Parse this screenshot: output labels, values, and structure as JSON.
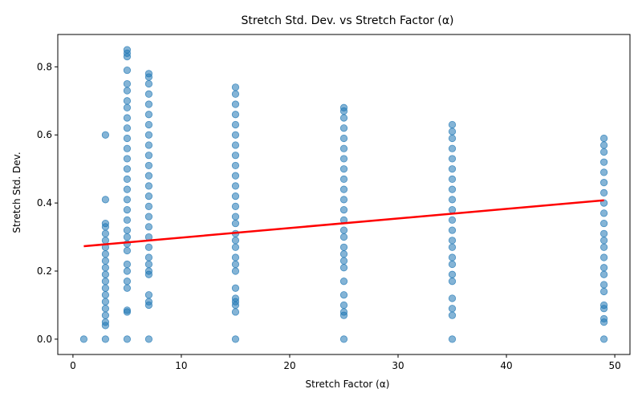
{
  "chart_data": {
    "type": "scatter",
    "title": "Stretch Std. Dev. vs Stretch Factor (α)",
    "xlabel": "Stretch Factor (α)",
    "ylabel": "Stretch Std. Dev.",
    "xlim": [
      -1.4,
      51.4
    ],
    "ylim": [
      -0.045,
      0.895
    ],
    "xticks": [
      0,
      10,
      20,
      30,
      40,
      50
    ],
    "yticks": [
      0.0,
      0.2,
      0.4,
      0.6,
      0.8
    ],
    "grid": false,
    "point_color": "#1f77b4",
    "fit_color": "#ff0000",
    "series": [
      {
        "points": [
          {
            "x": 1,
            "y": 0.0
          },
          {
            "x": 3,
            "y": 0.0
          },
          {
            "x": 3,
            "y": 0.04
          },
          {
            "x": 3,
            "y": 0.05
          },
          {
            "x": 3,
            "y": 0.07
          },
          {
            "x": 3,
            "y": 0.09
          },
          {
            "x": 3,
            "y": 0.11
          },
          {
            "x": 3,
            "y": 0.13
          },
          {
            "x": 3,
            "y": 0.15
          },
          {
            "x": 3,
            "y": 0.17
          },
          {
            "x": 3,
            "y": 0.19
          },
          {
            "x": 3,
            "y": 0.21
          },
          {
            "x": 3,
            "y": 0.23
          },
          {
            "x": 3,
            "y": 0.25
          },
          {
            "x": 3,
            "y": 0.27
          },
          {
            "x": 3,
            "y": 0.29
          },
          {
            "x": 3,
            "y": 0.31
          },
          {
            "x": 3,
            "y": 0.33
          },
          {
            "x": 3,
            "y": 0.34
          },
          {
            "x": 3,
            "y": 0.41
          },
          {
            "x": 3,
            "y": 0.6
          },
          {
            "x": 5,
            "y": 0.0
          },
          {
            "x": 5,
            "y": 0.08
          },
          {
            "x": 5,
            "y": 0.085
          },
          {
            "x": 5,
            "y": 0.15
          },
          {
            "x": 5,
            "y": 0.17
          },
          {
            "x": 5,
            "y": 0.2
          },
          {
            "x": 5,
            "y": 0.22
          },
          {
            "x": 5,
            "y": 0.26
          },
          {
            "x": 5,
            "y": 0.28
          },
          {
            "x": 5,
            "y": 0.3
          },
          {
            "x": 5,
            "y": 0.32
          },
          {
            "x": 5,
            "y": 0.35
          },
          {
            "x": 5,
            "y": 0.38
          },
          {
            "x": 5,
            "y": 0.41
          },
          {
            "x": 5,
            "y": 0.44
          },
          {
            "x": 5,
            "y": 0.47
          },
          {
            "x": 5,
            "y": 0.5
          },
          {
            "x": 5,
            "y": 0.53
          },
          {
            "x": 5,
            "y": 0.56
          },
          {
            "x": 5,
            "y": 0.59
          },
          {
            "x": 5,
            "y": 0.62
          },
          {
            "x": 5,
            "y": 0.65
          },
          {
            "x": 5,
            "y": 0.68
          },
          {
            "x": 5,
            "y": 0.7
          },
          {
            "x": 5,
            "y": 0.73
          },
          {
            "x": 5,
            "y": 0.75
          },
          {
            "x": 5,
            "y": 0.79
          },
          {
            "x": 5,
            "y": 0.83
          },
          {
            "x": 5,
            "y": 0.84
          },
          {
            "x": 5,
            "y": 0.85
          },
          {
            "x": 7,
            "y": 0.0
          },
          {
            "x": 7,
            "y": 0.1
          },
          {
            "x": 7,
            "y": 0.11
          },
          {
            "x": 7,
            "y": 0.13
          },
          {
            "x": 7,
            "y": 0.19
          },
          {
            "x": 7,
            "y": 0.2
          },
          {
            "x": 7,
            "y": 0.22
          },
          {
            "x": 7,
            "y": 0.24
          },
          {
            "x": 7,
            "y": 0.27
          },
          {
            "x": 7,
            "y": 0.3
          },
          {
            "x": 7,
            "y": 0.33
          },
          {
            "x": 7,
            "y": 0.36
          },
          {
            "x": 7,
            "y": 0.39
          },
          {
            "x": 7,
            "y": 0.42
          },
          {
            "x": 7,
            "y": 0.45
          },
          {
            "x": 7,
            "y": 0.48
          },
          {
            "x": 7,
            "y": 0.51
          },
          {
            "x": 7,
            "y": 0.54
          },
          {
            "x": 7,
            "y": 0.57
          },
          {
            "x": 7,
            "y": 0.6
          },
          {
            "x": 7,
            "y": 0.63
          },
          {
            "x": 7,
            "y": 0.66
          },
          {
            "x": 7,
            "y": 0.69
          },
          {
            "x": 7,
            "y": 0.72
          },
          {
            "x": 7,
            "y": 0.75
          },
          {
            "x": 7,
            "y": 0.77
          },
          {
            "x": 7,
            "y": 0.78
          },
          {
            "x": 15,
            "y": 0.0
          },
          {
            "x": 15,
            "y": 0.08
          },
          {
            "x": 15,
            "y": 0.1
          },
          {
            "x": 15,
            "y": 0.11
          },
          {
            "x": 15,
            "y": 0.12
          },
          {
            "x": 15,
            "y": 0.15
          },
          {
            "x": 15,
            "y": 0.2
          },
          {
            "x": 15,
            "y": 0.22
          },
          {
            "x": 15,
            "y": 0.24
          },
          {
            "x": 15,
            "y": 0.27
          },
          {
            "x": 15,
            "y": 0.29
          },
          {
            "x": 15,
            "y": 0.31
          },
          {
            "x": 15,
            "y": 0.34
          },
          {
            "x": 15,
            "y": 0.36
          },
          {
            "x": 15,
            "y": 0.39
          },
          {
            "x": 15,
            "y": 0.42
          },
          {
            "x": 15,
            "y": 0.45
          },
          {
            "x": 15,
            "y": 0.48
          },
          {
            "x": 15,
            "y": 0.51
          },
          {
            "x": 15,
            "y": 0.54
          },
          {
            "x": 15,
            "y": 0.57
          },
          {
            "x": 15,
            "y": 0.6
          },
          {
            "x": 15,
            "y": 0.63
          },
          {
            "x": 15,
            "y": 0.66
          },
          {
            "x": 15,
            "y": 0.69
          },
          {
            "x": 15,
            "y": 0.72
          },
          {
            "x": 15,
            "y": 0.74
          },
          {
            "x": 25,
            "y": 0.0
          },
          {
            "x": 25,
            "y": 0.07
          },
          {
            "x": 25,
            "y": 0.08
          },
          {
            "x": 25,
            "y": 0.1
          },
          {
            "x": 25,
            "y": 0.13
          },
          {
            "x": 25,
            "y": 0.17
          },
          {
            "x": 25,
            "y": 0.21
          },
          {
            "x": 25,
            "y": 0.23
          },
          {
            "x": 25,
            "y": 0.25
          },
          {
            "x": 25,
            "y": 0.27
          },
          {
            "x": 25,
            "y": 0.3
          },
          {
            "x": 25,
            "y": 0.32
          },
          {
            "x": 25,
            "y": 0.35
          },
          {
            "x": 25,
            "y": 0.38
          },
          {
            "x": 25,
            "y": 0.41
          },
          {
            "x": 25,
            "y": 0.44
          },
          {
            "x": 25,
            "y": 0.47
          },
          {
            "x": 25,
            "y": 0.5
          },
          {
            "x": 25,
            "y": 0.53
          },
          {
            "x": 25,
            "y": 0.56
          },
          {
            "x": 25,
            "y": 0.59
          },
          {
            "x": 25,
            "y": 0.62
          },
          {
            "x": 25,
            "y": 0.65
          },
          {
            "x": 25,
            "y": 0.67
          },
          {
            "x": 25,
            "y": 0.68
          },
          {
            "x": 35,
            "y": 0.0
          },
          {
            "x": 35,
            "y": 0.07
          },
          {
            "x": 35,
            "y": 0.09
          },
          {
            "x": 35,
            "y": 0.12
          },
          {
            "x": 35,
            "y": 0.17
          },
          {
            "x": 35,
            "y": 0.19
          },
          {
            "x": 35,
            "y": 0.22
          },
          {
            "x": 35,
            "y": 0.24
          },
          {
            "x": 35,
            "y": 0.27
          },
          {
            "x": 35,
            "y": 0.29
          },
          {
            "x": 35,
            "y": 0.32
          },
          {
            "x": 35,
            "y": 0.35
          },
          {
            "x": 35,
            "y": 0.38
          },
          {
            "x": 35,
            "y": 0.41
          },
          {
            "x": 35,
            "y": 0.44
          },
          {
            "x": 35,
            "y": 0.47
          },
          {
            "x": 35,
            "y": 0.5
          },
          {
            "x": 35,
            "y": 0.53
          },
          {
            "x": 35,
            "y": 0.56
          },
          {
            "x": 35,
            "y": 0.59
          },
          {
            "x": 35,
            "y": 0.61
          },
          {
            "x": 35,
            "y": 0.63
          },
          {
            "x": 49,
            "y": 0.0
          },
          {
            "x": 49,
            "y": 0.05
          },
          {
            "x": 49,
            "y": 0.06
          },
          {
            "x": 49,
            "y": 0.09
          },
          {
            "x": 49,
            "y": 0.1
          },
          {
            "x": 49,
            "y": 0.14
          },
          {
            "x": 49,
            "y": 0.16
          },
          {
            "x": 49,
            "y": 0.19
          },
          {
            "x": 49,
            "y": 0.21
          },
          {
            "x": 49,
            "y": 0.24
          },
          {
            "x": 49,
            "y": 0.27
          },
          {
            "x": 49,
            "y": 0.29
          },
          {
            "x": 49,
            "y": 0.31
          },
          {
            "x": 49,
            "y": 0.34
          },
          {
            "x": 49,
            "y": 0.37
          },
          {
            "x": 49,
            "y": 0.4
          },
          {
            "x": 49,
            "y": 0.43
          },
          {
            "x": 49,
            "y": 0.46
          },
          {
            "x": 49,
            "y": 0.49
          },
          {
            "x": 49,
            "y": 0.52
          },
          {
            "x": 49,
            "y": 0.55
          },
          {
            "x": 49,
            "y": 0.57
          },
          {
            "x": 49,
            "y": 0.59
          }
        ]
      }
    ],
    "fit_line": {
      "x": [
        1,
        49
      ],
      "y": [
        0.273,
        0.408
      ]
    }
  }
}
